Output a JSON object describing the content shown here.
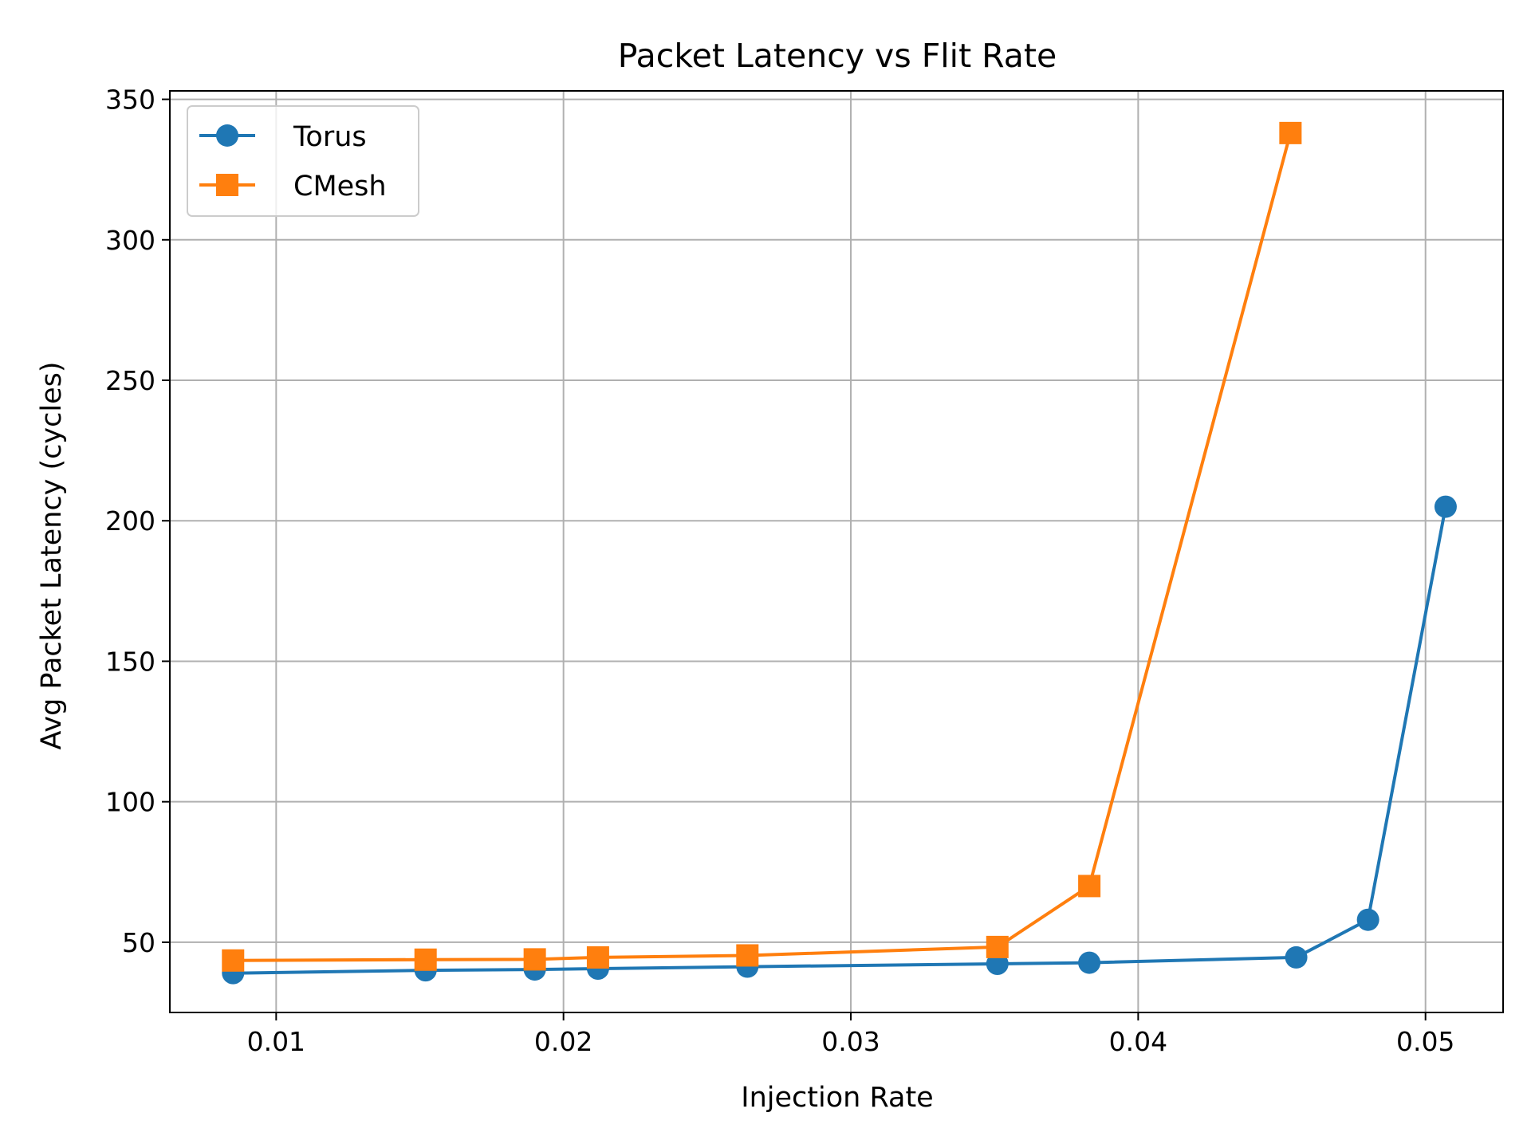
{
  "chart_data": {
    "type": "line",
    "title": "Packet Latency vs Flit Rate",
    "xlabel": "Injection Rate",
    "ylabel": "Avg Packet Latency (cycles)",
    "xlim": [
      0.0063,
      0.0527
    ],
    "ylim": [
      25,
      353
    ],
    "xticks": [
      0.01,
      0.02,
      0.03,
      0.04,
      0.05
    ],
    "xtick_labels": [
      "0.01",
      "0.02",
      "0.03",
      "0.04",
      "0.05"
    ],
    "yticks": [
      50,
      100,
      150,
      200,
      250,
      300,
      350
    ],
    "ytick_labels": [
      "50",
      "100",
      "150",
      "200",
      "250",
      "300",
      "350"
    ],
    "grid": true,
    "legend_position": "top-left",
    "series": [
      {
        "name": "Torus",
        "color": "#1f77b4",
        "marker": "circle",
        "x": [
          0.0085,
          0.0152,
          0.019,
          0.0212,
          0.0264,
          0.0351,
          0.0383,
          0.0455,
          0.048,
          0.0507
        ],
        "y": [
          39,
          40,
          40.3,
          40.6,
          41.3,
          42.3,
          42.7,
          44.6,
          58,
          205
        ]
      },
      {
        "name": "CMesh",
        "color": "#ff7f0e",
        "marker": "square",
        "x": [
          0.0085,
          0.0152,
          0.019,
          0.0212,
          0.0264,
          0.0351,
          0.0383,
          0.0453
        ],
        "y": [
          43.5,
          43.8,
          43.9,
          44.6,
          45.3,
          48.3,
          70,
          338
        ]
      }
    ]
  }
}
